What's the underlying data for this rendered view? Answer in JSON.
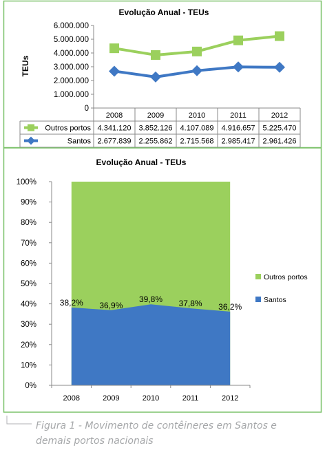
{
  "colors": {
    "frame": "#7cc26a",
    "outros": "#9bd05d",
    "santos": "#3f78c4",
    "grid": "#888888",
    "text": "#000000",
    "caption": "#a6a8aa"
  },
  "chart_data": [
    {
      "type": "line",
      "title": "Evolução Anual - TEUs",
      "ylabel": "TEUs",
      "categories": [
        "2008",
        "2009",
        "2010",
        "2011",
        "2012"
      ],
      "y_ticks": [
        "6.000.000",
        "5.000.000",
        "4.000.000",
        "3.000.000",
        "2.000.000",
        "1.000.000",
        "0"
      ],
      "ylim": [
        0,
        6000000
      ],
      "legend_position": "table",
      "series": [
        {
          "name": "Outros portos",
          "values": [
            4341120,
            3852126,
            4107089,
            4916657,
            5225470
          ],
          "labels": [
            "4.341.120",
            "3.852.126",
            "4.107.089",
            "4.916.657",
            "5.225.470"
          ],
          "color": "#9bd05d",
          "marker": "square"
        },
        {
          "name": "Santos",
          "values": [
            2677839,
            2255862,
            2715568,
            2985417,
            2961426
          ],
          "labels": [
            "2.677.839",
            "2.255.862",
            "2.715.568",
            "2.985.417",
            "2.961.426"
          ],
          "color": "#3f78c4",
          "marker": "diamond"
        }
      ]
    },
    {
      "type": "area",
      "stacked": "percent",
      "title": "Evolução Anual - TEUs",
      "categories": [
        "2008",
        "2009",
        "2010",
        "2011",
        "2012"
      ],
      "y_ticks": [
        "100%",
        "90%",
        "80%",
        "70%",
        "60%",
        "50%",
        "40%",
        "30%",
        "20%",
        "10%",
        "0%"
      ],
      "ylim": [
        0,
        100
      ],
      "legend_position": "right",
      "series": [
        {
          "name": "Santos",
          "values": [
            38.2,
            36.9,
            39.8,
            37.8,
            36.2
          ],
          "labels": [
            "38,2%",
            "36,9%",
            "39,8%",
            "37,8%",
            "36,2%"
          ],
          "color": "#3f78c4"
        },
        {
          "name": "Outros portos",
          "values": [
            61.8,
            63.1,
            60.2,
            62.2,
            63.8
          ],
          "color": "#9bd05d"
        }
      ],
      "legend": [
        "Outros portos",
        "Santos"
      ]
    }
  ],
  "caption": "Figura 1 - Movimento de contêineres em Santos e demais portos nacionais"
}
